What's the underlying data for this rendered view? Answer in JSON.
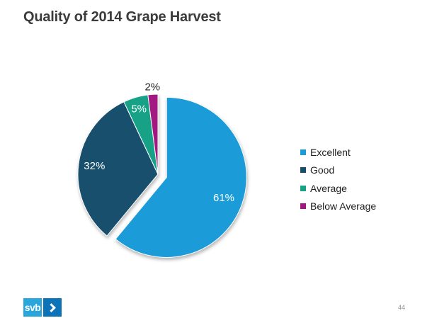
{
  "chart_data": {
    "type": "pie",
    "title": "Quality of 2014 Grape Harvest",
    "categories": [
      "Excellent",
      "Good",
      "Average",
      "Below Average"
    ],
    "values": [
      61,
      32,
      5,
      2
    ],
    "labels": [
      "61%",
      "32%",
      "5%",
      "2%"
    ],
    "colors": [
      "#1b9cd9",
      "#174f6c",
      "#17a287",
      "#a21780"
    ],
    "start_angle_deg": 0,
    "direction": "clockwise",
    "exploded_slice_index": 0,
    "exploded_slice": "Excellent",
    "legend_position": "right",
    "inside_label_color": "#ffffff",
    "outside_label_color": "#262626"
  },
  "footer": {
    "logo": {
      "text": "svb",
      "light_box_color": "#2aa6dd",
      "dark_box_color": "#0c73b8",
      "chevron_icon": "chevron-right"
    },
    "page_number": "44"
  }
}
